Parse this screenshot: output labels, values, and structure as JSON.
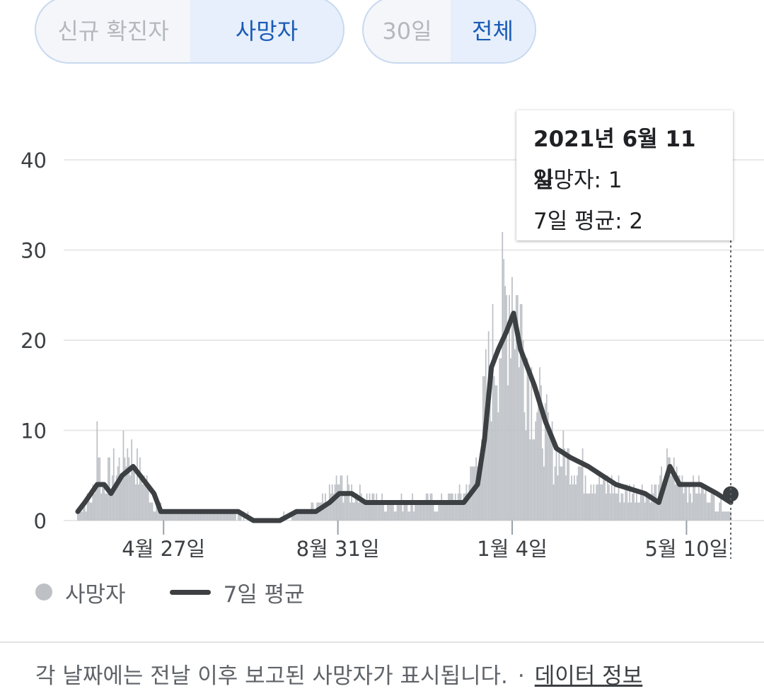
{
  "toggles": {
    "metric": {
      "options": [
        "신규 확진자",
        "사망자"
      ],
      "selected": "사망자"
    },
    "range": {
      "options": [
        "30일",
        "전체"
      ],
      "selected": "전체"
    }
  },
  "tooltip": {
    "date": "2021년 6월 11일",
    "deaths": "사망자: 1",
    "avg": "7일 평균: 2"
  },
  "legend": {
    "bar_label": "사망자",
    "line_label": "7일 평균"
  },
  "footer": {
    "note": "각 날짜에는 전날 이후 보고된 사망자가 표시됩니다.",
    "separator": "·",
    "link": "데이터 정보"
  },
  "colors": {
    "bar": "#bdc1c6",
    "line": "#3c4043",
    "grid": "#e8e8e8",
    "active": "#1a5bb5"
  },
  "chart_data": {
    "type": "bar",
    "title": "",
    "xlabel": "",
    "ylabel": "",
    "ylim": [
      0,
      40
    ],
    "yticks": [
      0,
      10,
      20,
      30,
      40
    ],
    "x_tick_labels": [
      {
        "date": "2020-04-27",
        "label": "4월 27일"
      },
      {
        "date": "2020-08-31",
        "label": "8월 31일"
      },
      {
        "date": "2021-01-04",
        "label": "1월 4일"
      },
      {
        "date": "2021-05-10",
        "label": "5월 10일"
      }
    ],
    "x_start": "2020-02-25",
    "x_end": "2021-06-11",
    "selected_date": "2021-06-11",
    "series": [
      {
        "name": "사망자",
        "kind": "bar",
        "keypoints": [
          [
            "2020-02-25",
            1
          ],
          [
            "2020-03-01",
            2
          ],
          [
            "2020-03-08",
            3
          ],
          [
            "2020-03-10",
            11
          ],
          [
            "2020-03-13",
            4
          ],
          [
            "2020-03-18",
            5
          ],
          [
            "2020-03-25",
            6
          ],
          [
            "2020-04-01",
            8
          ],
          [
            "2020-04-05",
            7
          ],
          [
            "2020-04-10",
            5
          ],
          [
            "2020-04-15",
            4
          ],
          [
            "2020-04-20",
            2
          ],
          [
            "2020-05-01",
            1
          ],
          [
            "2020-06-15",
            1
          ],
          [
            "2020-07-10",
            0
          ],
          [
            "2020-08-10",
            1
          ],
          [
            "2020-08-20",
            2
          ],
          [
            "2020-08-31",
            4
          ],
          [
            "2020-09-15",
            3
          ],
          [
            "2020-10-01",
            2
          ],
          [
            "2020-11-15",
            2
          ],
          [
            "2020-12-01",
            3
          ],
          [
            "2020-12-10",
            7
          ],
          [
            "2020-12-18",
            16
          ],
          [
            "2020-12-25",
            20
          ],
          [
            "2021-01-04",
            27
          ],
          [
            "2021-01-10",
            22
          ],
          [
            "2021-01-20",
            14
          ],
          [
            "2021-02-01",
            8
          ],
          [
            "2021-02-20",
            6
          ],
          [
            "2021-03-10",
            4
          ],
          [
            "2021-04-01",
            3
          ],
          [
            "2021-04-20",
            3
          ],
          [
            "2021-04-25",
            6
          ],
          [
            "2021-05-10",
            4
          ],
          [
            "2021-05-25",
            3
          ],
          [
            "2021-06-11",
            1
          ]
        ]
      },
      {
        "name": "7일 평균",
        "kind": "line",
        "keypoints": [
          [
            "2020-02-25",
            1
          ],
          [
            "2020-03-01",
            2
          ],
          [
            "2020-03-10",
            4
          ],
          [
            "2020-03-15",
            4
          ],
          [
            "2020-03-20",
            3
          ],
          [
            "2020-03-28",
            5
          ],
          [
            "2020-04-05",
            6
          ],
          [
            "2020-04-10",
            5
          ],
          [
            "2020-04-15",
            4
          ],
          [
            "2020-04-20",
            3
          ],
          [
            "2020-04-25",
            1
          ],
          [
            "2020-06-20",
            1
          ],
          [
            "2020-07-01",
            0
          ],
          [
            "2020-07-20",
            0
          ],
          [
            "2020-08-01",
            1
          ],
          [
            "2020-08-15",
            1
          ],
          [
            "2020-08-25",
            2
          ],
          [
            "2020-09-01",
            3
          ],
          [
            "2020-09-10",
            3
          ],
          [
            "2020-09-20",
            2
          ],
          [
            "2020-11-30",
            2
          ],
          [
            "2020-12-10",
            4
          ],
          [
            "2020-12-15",
            9
          ],
          [
            "2020-12-20",
            17
          ],
          [
            "2020-12-25",
            19
          ],
          [
            "2020-12-31",
            21
          ],
          [
            "2021-01-05",
            23
          ],
          [
            "2021-01-10",
            19
          ],
          [
            "2021-01-20",
            15
          ],
          [
            "2021-01-28",
            11
          ],
          [
            "2021-02-05",
            8
          ],
          [
            "2021-02-15",
            7
          ],
          [
            "2021-02-28",
            6
          ],
          [
            "2021-03-10",
            5
          ],
          [
            "2021-03-20",
            4
          ],
          [
            "2021-04-10",
            3
          ],
          [
            "2021-04-20",
            2
          ],
          [
            "2021-04-28",
            6
          ],
          [
            "2021-05-05",
            4
          ],
          [
            "2021-05-20",
            4
          ],
          [
            "2021-06-01",
            3
          ],
          [
            "2021-06-11",
            2
          ]
        ]
      }
    ],
    "legend_position": "bottom-left",
    "grid": true
  }
}
